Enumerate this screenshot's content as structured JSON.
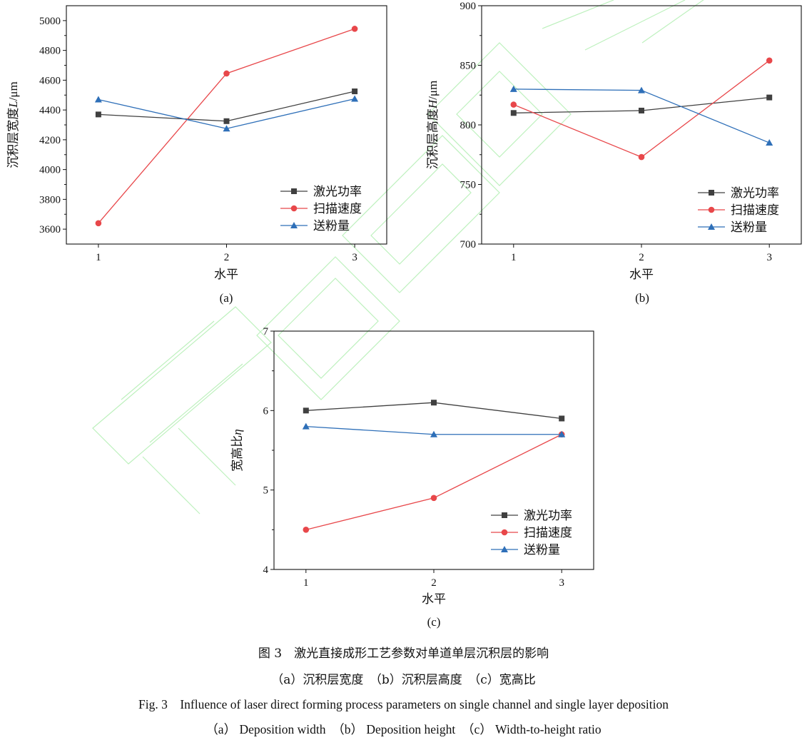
{
  "colors": {
    "laser_power": "#404040",
    "scan_speed": "#e8474a",
    "powder_feed": "#2e6fb8",
    "watermark": "#6fe06f"
  },
  "chart_data": [
    {
      "type": "line",
      "subfig": "(a)",
      "x": [
        1,
        2,
        3
      ],
      "x_ticks": [
        "1",
        "2",
        "3"
      ],
      "xlabel": "水平",
      "ylabel_main": "沉积层宽度",
      "ylabel_sym": "L",
      "ylabel_unit": "/μm",
      "ylim": [
        3500,
        5100
      ],
      "y_ticks": [
        "3600",
        "3800",
        "4000",
        "4200",
        "4400",
        "4600",
        "4800",
        "5000"
      ],
      "legend_position": "lower-right",
      "series": [
        {
          "name": "激光功率",
          "values": [
            4370,
            4325,
            4525
          ],
          "marker": "square"
        },
        {
          "name": "扫描速度",
          "values": [
            3640,
            4645,
            4945
          ],
          "marker": "circle"
        },
        {
          "name": "送粉量",
          "values": [
            4470,
            4275,
            4475
          ],
          "marker": "triangle"
        }
      ]
    },
    {
      "type": "line",
      "subfig": "(b)",
      "x": [
        1,
        2,
        3
      ],
      "x_ticks": [
        "1",
        "2",
        "3"
      ],
      "xlabel": "水平",
      "ylabel_main": "沉积层高度",
      "ylabel_sym": "H",
      "ylabel_unit": "/μm",
      "ylim": [
        700,
        900
      ],
      "y_ticks": [
        "700",
        "750",
        "800",
        "850",
        "900"
      ],
      "legend_position": "lower-right",
      "series": [
        {
          "name": "激光功率",
          "values": [
            810,
            812,
            823
          ],
          "marker": "square"
        },
        {
          "name": "扫描速度",
          "values": [
            817,
            773,
            854
          ],
          "marker": "circle"
        },
        {
          "name": "送粉量",
          "values": [
            830,
            829,
            785
          ],
          "marker": "triangle"
        }
      ]
    },
    {
      "type": "line",
      "subfig": "(c)",
      "x": [
        1,
        2,
        3
      ],
      "x_ticks": [
        "1",
        "2",
        "3"
      ],
      "xlabel": "水平",
      "ylabel_main": "宽高比",
      "ylabel_sym": "η",
      "ylabel_unit": "",
      "ylim": [
        4,
        7
      ],
      "y_ticks": [
        "4",
        "5",
        "6",
        "7"
      ],
      "legend_position": "lower-right",
      "series": [
        {
          "name": "激光功率",
          "values": [
            6.0,
            6.1,
            5.9
          ],
          "marker": "square"
        },
        {
          "name": "扫描速度",
          "values": [
            4.5,
            4.9,
            5.7
          ],
          "marker": "circle"
        },
        {
          "name": "送粉量",
          "values": [
            5.8,
            5.7,
            5.7
          ],
          "marker": "triangle"
        }
      ]
    }
  ],
  "caption": {
    "cn_title": "图 3　激光直接成形工艺参数对单道单层沉积层的影响",
    "cn_sub": "（a）沉积层宽度　（b）沉积层高度　（c）宽高比",
    "en_title": "Fig. 3　Influence of laser direct forming process parameters on single channel and single layer deposition",
    "en_sub": "（a） Deposition width　（b） Deposition height　（c） Width-to-height ratio"
  }
}
